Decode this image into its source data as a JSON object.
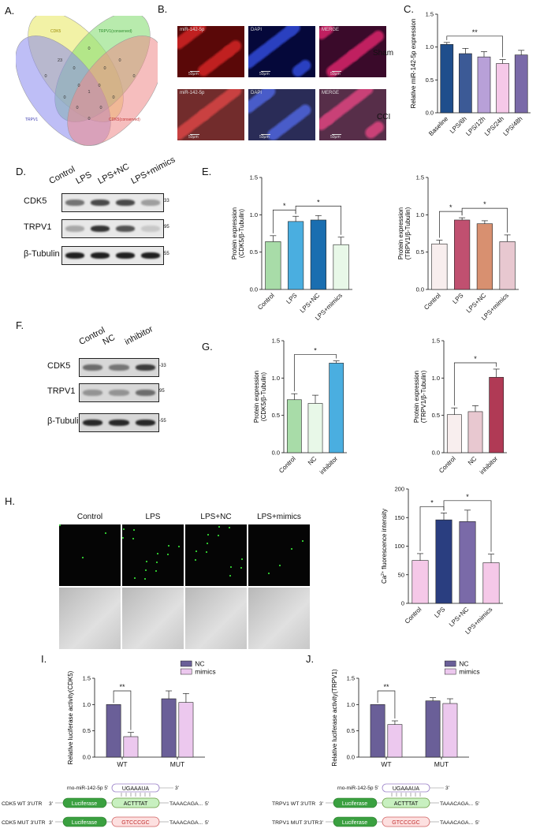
{
  "panels": {
    "A": "A.",
    "B": "B.",
    "C": "C.",
    "D": "D.",
    "E": "E.",
    "F": "F.",
    "G": "G.",
    "H": "H.",
    "I": "I.",
    "J": "J."
  },
  "venn": {
    "sets": [
      "CDK5",
      "TRPV1(conserved)",
      "TRPV1",
      "CDK5(conserved)"
    ],
    "set_colors": [
      "#eeee88",
      "#88dd77",
      "#8888ee",
      "#ee8888"
    ],
    "counts": [
      "23",
      "0",
      "0",
      "0",
      "0",
      "0",
      "0",
      "1",
      "0",
      "0",
      "0",
      "0",
      "0",
      "0",
      "0"
    ]
  },
  "micro": {
    "rows": [
      "Sham",
      "CCI"
    ],
    "cols": [
      "miR-142-5p",
      "DAPI",
      "MERGE"
    ],
    "scale": "50μm"
  },
  "blots_D": {
    "lanes": [
      "Control",
      "LPS",
      "LPS+NC",
      "LPS+mimics"
    ],
    "rows": [
      "CDK5",
      "TRPV1",
      "β-Tubulin"
    ],
    "kda": [
      "33",
      "95",
      "55"
    ]
  },
  "blots_F": {
    "lanes": [
      "Control",
      "NC",
      "inhibitor"
    ],
    "rows": [
      "CDK5",
      "TRPV1",
      "β-Tubulin"
    ],
    "kda": [
      "-33",
      "95",
      "-55"
    ]
  },
  "fluo_H": {
    "cols": [
      "Control",
      "LPS",
      "LPS+NC",
      "LPS+mimics"
    ]
  },
  "luc": {
    "mirna": "rno-miR-142-5p 5'",
    "three": "3'",
    "seed": "UGAAAUA",
    "wt_seq": "ACTTTAT",
    "mut_seq": "GTCCCGC",
    "luciferase": "Luciferase",
    "tail": "TAAACAGA...",
    "five": "5'",
    "cdk5_wt": "CDK5 WT 3'UTR",
    "cdk5_mut": "CDK5 MUT 3'UTR",
    "trpv1_wt": "TRPV1 WT 3'UTR",
    "trpv1_mut": "TRPV1 MUT 3'UTR"
  },
  "chart_data": [
    {
      "id": "C",
      "type": "bar",
      "categories": [
        "Baseline",
        "LPS/6h",
        "LPS/12h",
        "LPS/24h",
        "LPS/48h"
      ],
      "values": [
        1.04,
        0.9,
        0.85,
        0.75,
        0.88
      ],
      "errors": [
        0.03,
        0.08,
        0.08,
        0.06,
        0.07
      ],
      "colors": [
        "#1f4e8c",
        "#3c5a96",
        "#b8a0d8",
        "#f5c8e8",
        "#7a6aa8"
      ],
      "ylabel": "Relative miR-142-5p expression",
      "ylim": [
        0,
        1.5
      ],
      "yticks": [
        0,
        0.5,
        1.0,
        1.5
      ],
      "sig": [
        {
          "from": 0,
          "to": 3,
          "label": "**"
        }
      ]
    },
    {
      "id": "E1",
      "type": "bar",
      "categories": [
        "Control",
        "LPS",
        "LPS+NC",
        "LPS+mimics"
      ],
      "values": [
        0.64,
        0.91,
        0.93,
        0.6
      ],
      "errors": [
        0.08,
        0.07,
        0.06,
        0.1
      ],
      "colors": [
        "#a8dca8",
        "#4aaee0",
        "#1a6eb0",
        "#e8f8e8"
      ],
      "ylabel": "Protein expression (CDK5/β-Tubulin)",
      "ylim": [
        0,
        1.5
      ],
      "yticks": [
        0,
        0.5,
        1.0,
        1.5
      ],
      "sig": [
        {
          "from": 0,
          "to": 1,
          "label": "*"
        },
        {
          "from": 1,
          "to": 3,
          "label": "*"
        }
      ]
    },
    {
      "id": "E2",
      "type": "bar",
      "categories": [
        "Control",
        "LPS",
        "LPS+NC",
        "LPS+mimics"
      ],
      "values": [
        0.61,
        0.93,
        0.88,
        0.64
      ],
      "errors": [
        0.05,
        0.03,
        0.04,
        0.09
      ],
      "colors": [
        "#f8eeee",
        "#c05070",
        "#d89070",
        "#e8c8d0"
      ],
      "ylabel": "Protein expression (TRPV1/β-Tubulin)",
      "ylim": [
        0,
        1.5
      ],
      "yticks": [
        0,
        0.5,
        1.0,
        1.5
      ],
      "sig": [
        {
          "from": 0,
          "to": 1,
          "label": "*"
        },
        {
          "from": 1,
          "to": 3,
          "label": "*"
        }
      ]
    },
    {
      "id": "G1",
      "type": "bar",
      "categories": [
        "Control",
        "NC",
        "inhibitor"
      ],
      "values": [
        0.71,
        0.66,
        1.2
      ],
      "errors": [
        0.08,
        0.11,
        0.03
      ],
      "colors": [
        "#a8dca8",
        "#e8f8e8",
        "#4aaee0"
      ],
      "ylabel": "Protein expression (CDK5/β-Tubulin)",
      "ylim": [
        0,
        1.5
      ],
      "yticks": [
        0,
        0.5,
        1.0,
        1.5
      ],
      "sig": [
        {
          "from": 0,
          "to": 2,
          "label": "*"
        }
      ]
    },
    {
      "id": "G2",
      "type": "bar",
      "categories": [
        "Control",
        "NC",
        "inhibitor"
      ],
      "values": [
        0.51,
        0.55,
        1.01
      ],
      "errors": [
        0.09,
        0.08,
        0.11
      ],
      "colors": [
        "#f8eeee",
        "#e8c8d0",
        "#b03a55"
      ],
      "ylabel": "Protein expression (TRPV1/β-Tubulin)",
      "ylim": [
        0,
        1.5
      ],
      "yticks": [
        0,
        0.5,
        1.0,
        1.5
      ],
      "sig": [
        {
          "from": 0,
          "to": 2,
          "label": "*"
        }
      ]
    },
    {
      "id": "H",
      "type": "bar",
      "categories": [
        "Control",
        "LPS",
        "LPS+NC",
        "LPS+mimics"
      ],
      "values": [
        75,
        146,
        143,
        71
      ],
      "errors": [
        12,
        12,
        20,
        15
      ],
      "colors": [
        "#f5c8e8",
        "#2a3e80",
        "#7a6aa8",
        "#f5c8e8"
      ],
      "ylabel": "Ca2+ fluorescence intensity",
      "ylim": [
        0,
        200
      ],
      "yticks": [
        0,
        50,
        100,
        150,
        200
      ],
      "sig": [
        {
          "from": 0,
          "to": 1,
          "label": "*"
        },
        {
          "from": 1,
          "to": 3,
          "label": "*"
        }
      ]
    },
    {
      "id": "I",
      "type": "bar",
      "categories": [
        "WT",
        "MUT"
      ],
      "series": [
        {
          "name": "NC",
          "values": [
            1.0,
            1.11
          ],
          "errors": [
            0.0,
            0.15
          ],
          "color": "#6a5f98"
        },
        {
          "name": "mimics",
          "values": [
            0.39,
            1.04
          ],
          "errors": [
            0.08,
            0.17
          ],
          "color": "#ecc8ee"
        }
      ],
      "ylabel": "Relative luciferase activity(CDK5)",
      "ylim": [
        0,
        1.5
      ],
      "yticks": [
        0,
        0.5,
        1.0,
        1.5
      ],
      "sig": [
        {
          "group": 0,
          "label": "**"
        }
      ]
    },
    {
      "id": "J",
      "type": "bar",
      "categories": [
        "WT",
        "MUT"
      ],
      "series": [
        {
          "name": "NC",
          "values": [
            1.0,
            1.07
          ],
          "errors": [
            0.0,
            0.06
          ],
          "color": "#6a5f98"
        },
        {
          "name": "mimics",
          "values": [
            0.62,
            1.02
          ],
          "errors": [
            0.07,
            0.09
          ],
          "color": "#ecc8ee"
        }
      ],
      "ylabel": "Relative luciferase activity(TRPV1)",
      "ylim": [
        0,
        1.5
      ],
      "yticks": [
        0,
        0.5,
        1.0,
        1.5
      ],
      "sig": [
        {
          "group": 0,
          "label": "**"
        }
      ]
    }
  ]
}
